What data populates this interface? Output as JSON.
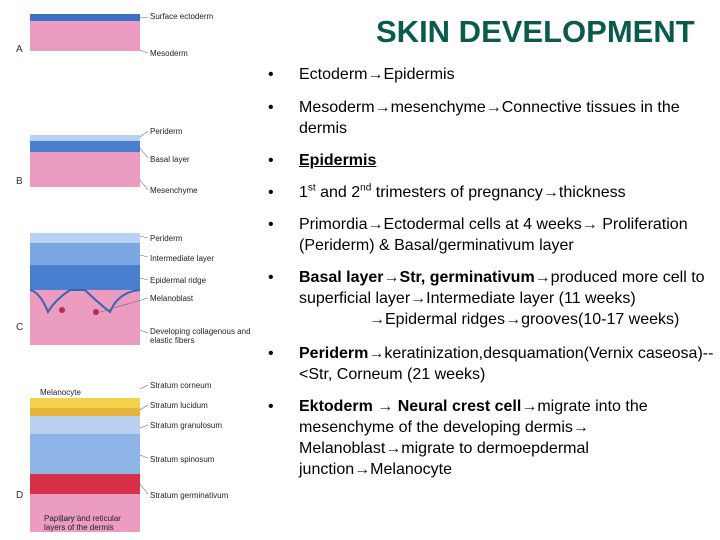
{
  "title": "SKIN DEVELOPMENT",
  "panels": {
    "A": {
      "letter": "A",
      "labels": [
        "Surface ectoderm",
        "Mesoderm"
      ]
    },
    "B": {
      "letter": "B",
      "labels": [
        "Periderm",
        "Basal layer",
        "Mesenchyme"
      ]
    },
    "C": {
      "letter": "C",
      "labels": [
        "Periderm",
        "Intermediate layer",
        "Epidermal ridge",
        "Melanoblast",
        "Developing collagenous and elastic fibers"
      ]
    },
    "D": {
      "letter": "D",
      "labels": [
        "Melanocyte",
        "Stratum corneum",
        "Stratum lucidum",
        "Stratum granulosum",
        "Stratum spinosum",
        "Stratum germinativum",
        "Papillary and reticular layers of the dermis"
      ]
    }
  },
  "bullets": {
    "b1": {
      "dot": "•",
      "a": "Ectoderm",
      "b": "Epidermis"
    },
    "b2": {
      "dot": "•",
      "a": "Mesoderm",
      "b": "mesenchyme",
      "c": "Connective tissues in the dermis"
    },
    "b3": {
      "dot": "•",
      "text": "Epidermis"
    },
    "b4": {
      "dot": "•",
      "a": "1",
      "a_sup": "st",
      "b": " and 2",
      "b_sup": "nd",
      "c": " trimesters of pregnancy",
      "d": "thickness"
    },
    "b5": {
      "dot": "•",
      "a": "Primordia",
      "b": "Ectodermal cells at 4 weeks",
      "c": " Proliferation (Periderm) & Basal/germinativum layer"
    },
    "b6": {
      "dot": "•",
      "a": "Basal layer",
      "b": "Str, germinativum",
      "c": "produced more cell to superficial layer",
      "d": "Intermediate layer (11 weeks)",
      "e": "Epidermal ridges",
      "f": "grooves(10-17 weeks)"
    },
    "b7": {
      "dot": "•",
      "a": "Periderm",
      "b": "keratinization,desquamation(Vernix caseosa)--<Str, Corneum (21 weeks)"
    },
    "b8": {
      "dot": "•",
      "a": "Ektoderm ",
      "b": " Neural crest cell",
      "c": "migrate into the mesenchyme of the developing dermis",
      "d": " Melanoblast",
      "e": "migrate to dermoepdermal junction",
      "f": "Melanocyte"
    }
  },
  "arrow_glyph": "→",
  "colors": {
    "title": "#0b5a4e",
    "dermis_pink": "#ec9cc0",
    "ectoderm_blue": "#5b8fd6",
    "ridge_red": "#d9304a"
  }
}
